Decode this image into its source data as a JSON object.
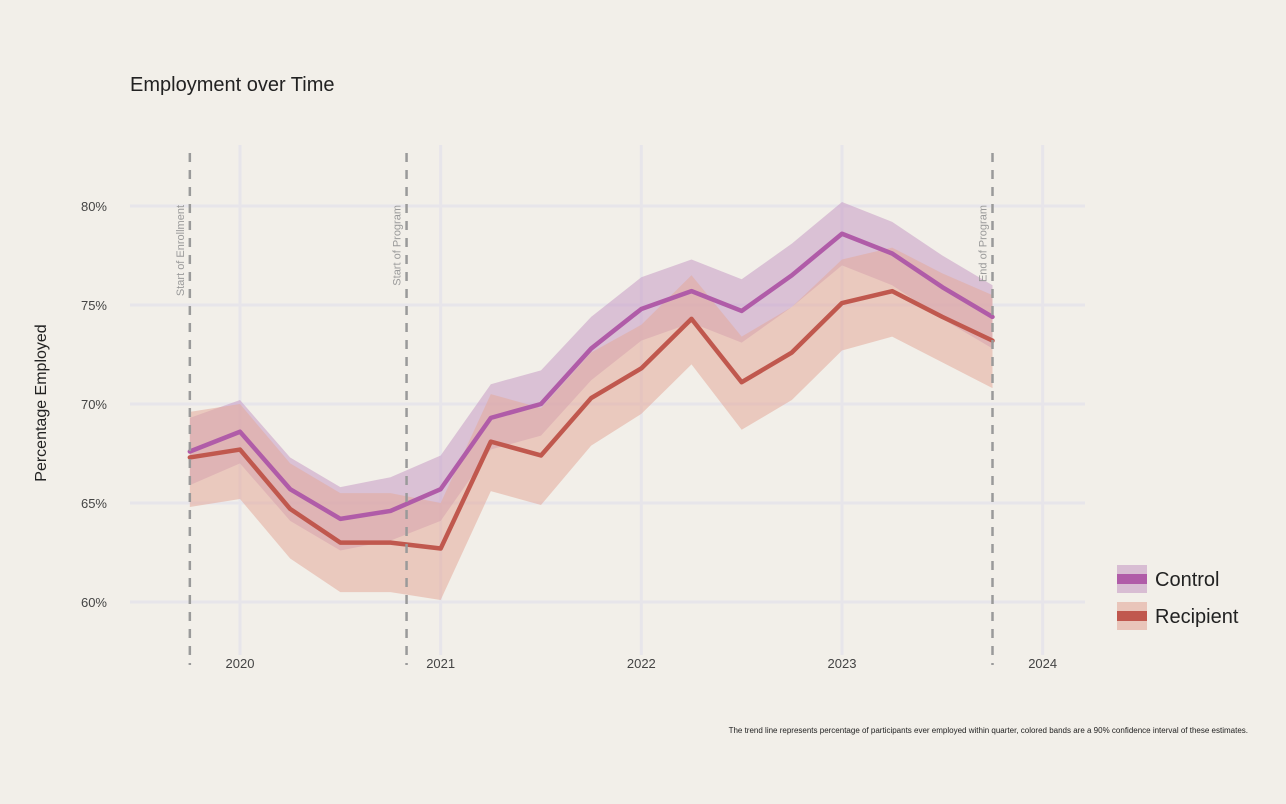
{
  "chart_data": {
    "type": "line",
    "title": "Employment over Time",
    "ylabel": "Percentage Employed",
    "xlabel": "",
    "ylim": [
      58.5,
      82.5
    ],
    "xlim": [
      2019.45,
      2024.2
    ],
    "yticks": [
      {
        "value": 60,
        "label": "60%"
      },
      {
        "value": 65,
        "label": "65%"
      },
      {
        "value": 70,
        "label": "70%"
      },
      {
        "value": 75,
        "label": "75%"
      },
      {
        "value": 80,
        "label": "80%"
      }
    ],
    "xticks": [
      {
        "value": 2020,
        "label": "2020"
      },
      {
        "value": 2021,
        "label": "2021"
      },
      {
        "value": 2022,
        "label": "2022"
      },
      {
        "value": 2023,
        "label": "2023"
      },
      {
        "value": 2024,
        "label": "2024"
      }
    ],
    "x": [
      2019.75,
      2020.0,
      2020.25,
      2020.5,
      2020.75,
      2021.0,
      2021.25,
      2021.5,
      2021.75,
      2022.0,
      2022.25,
      2022.5,
      2022.75,
      2023.0,
      2023.25,
      2023.5,
      2023.75
    ],
    "series": [
      {
        "name": "Control",
        "color": "#b05ca8",
        "band_color": "#c79bc4",
        "values": [
          67.6,
          68.6,
          65.7,
          64.2,
          64.6,
          65.7,
          69.3,
          70.0,
          72.8,
          74.8,
          75.7,
          74.7,
          76.5,
          78.6,
          77.6,
          75.9,
          74.4
        ],
        "lower": [
          65.9,
          67.0,
          64.1,
          62.6,
          63.1,
          64.1,
          67.7,
          68.4,
          71.2,
          73.2,
          74.1,
          73.1,
          74.9,
          77.0,
          76.0,
          74.3,
          72.8
        ],
        "upper": [
          69.3,
          70.2,
          67.3,
          65.8,
          66.3,
          67.4,
          71.0,
          71.7,
          74.4,
          76.4,
          77.3,
          76.3,
          78.1,
          80.2,
          79.2,
          77.5,
          76.0
        ]
      },
      {
        "name": "Recipient",
        "color": "#c0584e",
        "band_color": "#e3a99b",
        "values": [
          67.3,
          67.7,
          64.7,
          63.0,
          63.0,
          62.7,
          68.1,
          67.4,
          70.3,
          71.8,
          74.3,
          71.1,
          72.6,
          75.1,
          75.7,
          74.4,
          73.2
        ],
        "lower": [
          64.8,
          65.2,
          62.2,
          60.5,
          60.5,
          60.1,
          65.6,
          64.9,
          67.9,
          69.5,
          72.0,
          68.7,
          70.2,
          72.7,
          73.4,
          72.1,
          70.8
        ],
        "upper": [
          69.6,
          70.0,
          67.0,
          65.5,
          65.5,
          65.0,
          70.5,
          69.8,
          72.6,
          74.0,
          76.5,
          73.4,
          74.9,
          77.3,
          77.9,
          76.6,
          75.5
        ]
      }
    ],
    "events": [
      {
        "x": 2019.75,
        "label": "Start of Enrollment"
      },
      {
        "x": 2020.83,
        "label": "Start of Program"
      },
      {
        "x": 2023.75,
        "label": "End of Program"
      }
    ],
    "grid": true,
    "legend_position": "right"
  },
  "footnote": "The trend line represents percentage of participants ever employed within quarter, colored bands are a 90% confidence interval of these estimates."
}
